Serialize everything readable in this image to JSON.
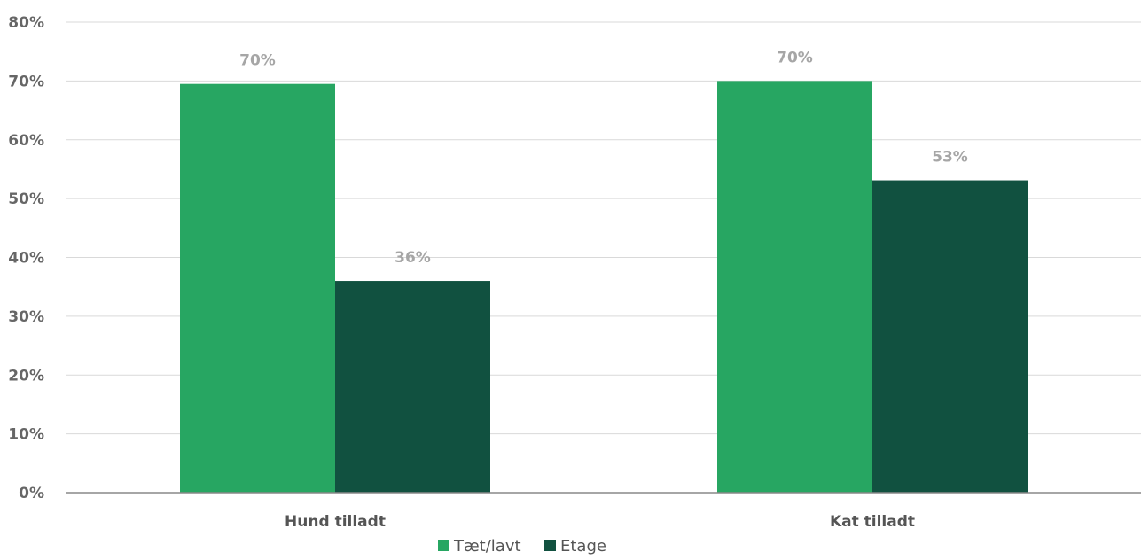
{
  "chart_data": {
    "type": "bar",
    "categories": [
      "Hund tilladt",
      "Kat tilladt"
    ],
    "series": [
      {
        "name": "Tæt/lavt",
        "values": [
          69.5,
          70
        ],
        "labels": [
          "70%",
          "70%"
        ],
        "color": "#27a662"
      },
      {
        "name": "Etage",
        "values": [
          36,
          53.1
        ],
        "labels": [
          "36%",
          "53%"
        ],
        "color": "#115140"
      }
    ],
    "yticks": [
      "0%",
      "10%",
      "20%",
      "30%",
      "40%",
      "50%",
      "60%",
      "70%",
      "80%"
    ],
    "ylim": [
      0,
      80
    ],
    "grid": true,
    "legend": "bottom-center",
    "gridline_color": "#d9d9d9",
    "axis_color": "#888888"
  }
}
